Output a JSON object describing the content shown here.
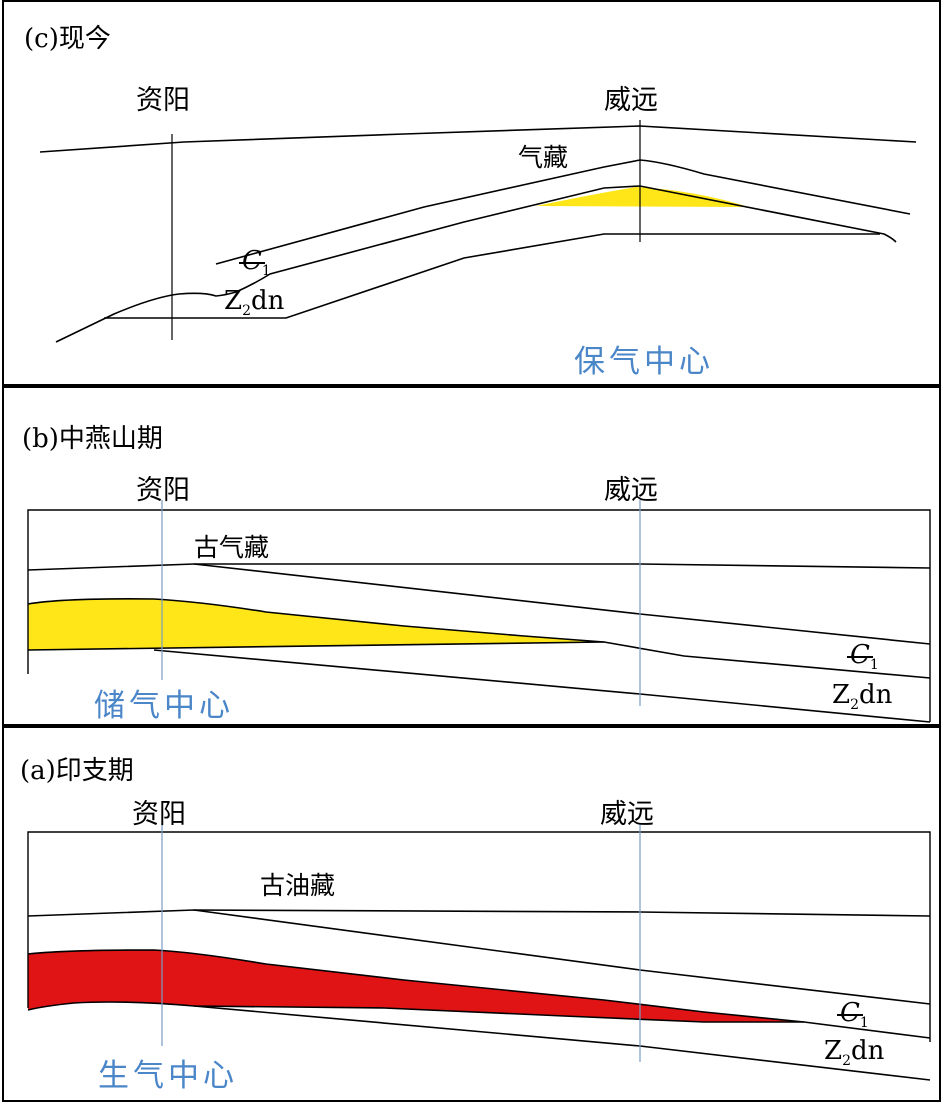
{
  "panels": {
    "c": {
      "title": "(c)现今",
      "place_left": "资阳",
      "place_right": "威远",
      "reservoir": "气藏",
      "strat_upper": "C",
      "strat_upper_sub": "1",
      "strat_lower": "Z",
      "strat_lower_sub": "2",
      "strat_lower_suffix": "dn",
      "center": "保气中心",
      "fill_color": "#ffe619"
    },
    "b": {
      "title": "(b)中燕山期",
      "place_left": "资阳",
      "place_right": "威远",
      "reservoir": "古气藏",
      "strat_upper": "C",
      "strat_upper_sub": "1",
      "strat_lower": "Z",
      "strat_lower_sub": "2",
      "strat_lower_suffix": "dn",
      "center": "储气中心",
      "fill_color": "#ffe619"
    },
    "a": {
      "title": "(a)印支期",
      "place_left": "资阳",
      "place_right": "威远",
      "reservoir": "古油藏",
      "strat_upper": "C",
      "strat_upper_sub": "1",
      "strat_lower": "Z",
      "strat_lower_sub": "2",
      "strat_lower_suffix": "dn",
      "center": "生气中心",
      "fill_color": "#e01414"
    }
  }
}
